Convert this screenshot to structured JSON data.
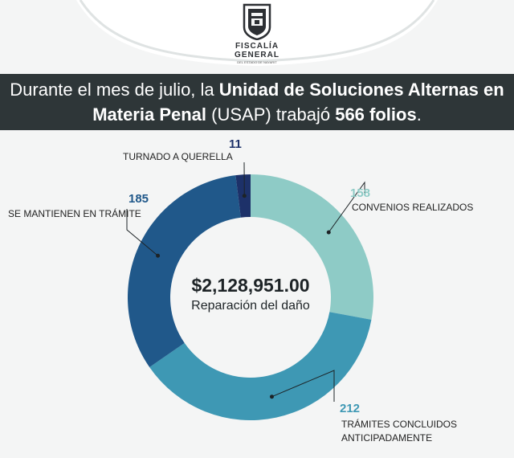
{
  "header": {
    "org_line1": "FISCALÍA",
    "org_line2": "GENERAL",
    "org_sub": "DEL ESTADO DE NAYARIT",
    "headline_part1": "Durante el mes de julio, la ",
    "headline_bold1": "Unidad de Soluciones Alternas en Materia Penal",
    "headline_part2": " (USAP) trabajó ",
    "headline_bold2": "566 folios",
    "headline_end": "."
  },
  "center": {
    "amount": "$2,128,951.00",
    "label": "Reparación del daño"
  },
  "colors": {
    "convenios": "#8ecbc6",
    "tramites_concluidos": "#3e98b4",
    "se_mantienen": "#20588a",
    "turnado": "#1d3169",
    "headline_bg": "#2e3638"
  },
  "chart_data": {
    "type": "pie",
    "donut": true,
    "series": [
      {
        "label": "CONVENIOS REALIZADOS",
        "value": 158
      },
      {
        "label": "TRÁMITES CONCLUIDOS ANTICIPADAMENTE",
        "value": 212
      },
      {
        "label": "SE MANTIENEN EN TRÁMITE",
        "value": 185
      },
      {
        "label": "TURNADO A QUERELLA",
        "value": 11
      }
    ],
    "value_labels": [
      "158",
      "212",
      "185",
      "11"
    ]
  }
}
